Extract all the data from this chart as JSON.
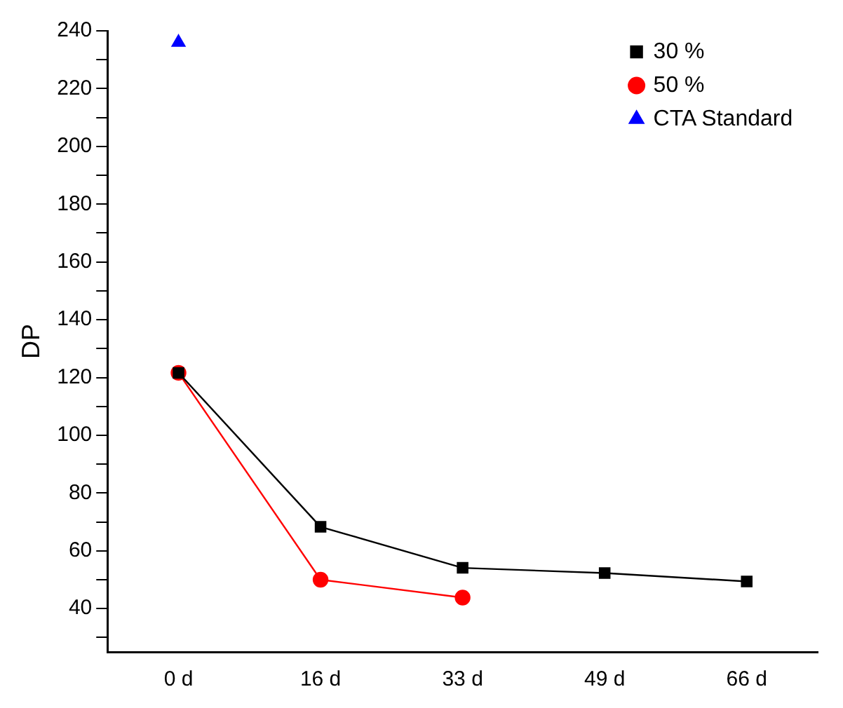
{
  "chart_data": {
    "type": "line",
    "ylabel": "DP",
    "categories": [
      "0 d",
      "16 d",
      "33 d",
      "49 d",
      "66 d"
    ],
    "series": [
      {
        "name": "30 %",
        "color": "#000000",
        "marker": "square",
        "values": [
          121.6,
          68.3,
          54.1,
          52.3,
          49.4
        ]
      },
      {
        "name": "50 %",
        "color": "#ff0000",
        "marker": "circle",
        "values": [
          121.6,
          50.0,
          43.8,
          null,
          null
        ]
      },
      {
        "name": "CTA Standard",
        "color": "#0000ff",
        "marker": "triangle",
        "values": [
          236,
          null,
          null,
          null,
          null
        ]
      }
    ],
    "ylim": [
      25,
      240
    ],
    "yticks": [
      {
        "value": 30,
        "label": null
      },
      40,
      {
        "value": 50,
        "label": null
      },
      60,
      {
        "value": 70,
        "label": null
      },
      80,
      {
        "value": 90,
        "label": null
      },
      100,
      {
        "value": 110,
        "label": null
      },
      120,
      {
        "value": 130,
        "label": null
      },
      140,
      {
        "value": 150,
        "label": null
      },
      160,
      {
        "value": 170,
        "label": null
      },
      180,
      {
        "value": 190,
        "label": null
      },
      200,
      {
        "value": 210,
        "label": null
      },
      220,
      {
        "value": 230,
        "label": null
      },
      240
    ],
    "grid": false,
    "legend": "top right",
    "line_style": "solid"
  }
}
